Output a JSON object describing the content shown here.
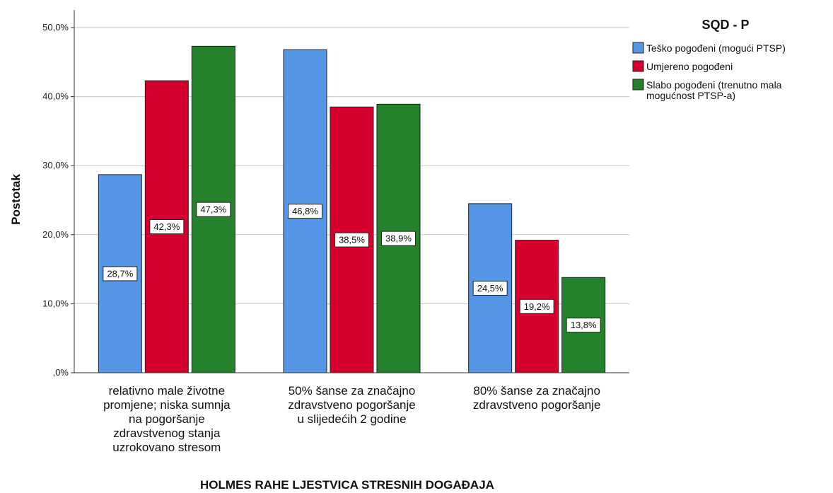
{
  "chart_data": {
    "type": "bar",
    "title": "",
    "xlabel": "HOLMES RAHE LJESTVICA STRESNIH DOGAĐAJA",
    "ylabel": "Postotak",
    "ylim": [
      0,
      50
    ],
    "yticks": [
      0,
      10,
      20,
      30,
      40,
      50
    ],
    "ytick_labels": [
      ",0%",
      "10,0%",
      "20,0%",
      "30,0%",
      "40,0%",
      "50,0%"
    ],
    "grid": true,
    "legend_position": "top-right",
    "legend_title": "SQD - P",
    "categories": [
      [
        "relativno male životne",
        "promjene; niska sumnja",
        "na pogoršanje",
        "zdravstvenog stanja",
        "uzrokovano stresom"
      ],
      [
        "50% šanse za značajno",
        "zdravstveno pogoršanje",
        "u slijedećih 2 godine"
      ],
      [
        "80% šanse za značajno",
        "zdravstveno pogoršanje"
      ]
    ],
    "series": [
      {
        "name": [
          "Teško pogođeni (mogući PTSP)"
        ],
        "color": "#5596e6",
        "values": [
          28.7,
          46.8,
          24.5
        ],
        "labels": [
          "28,7%",
          "46,8%",
          "24,5%"
        ]
      },
      {
        "name": [
          "Umjereno pogođeni"
        ],
        "color": "#d6002e",
        "values": [
          42.3,
          38.5,
          19.2
        ],
        "labels": [
          "42,3%",
          "38,5%",
          "19,2%"
        ]
      },
      {
        "name": [
          "Slabo pogođeni (trenutno mala",
          "mogućnost PTSP-a)"
        ],
        "color": "#24822d",
        "values": [
          47.3,
          38.9,
          13.8
        ],
        "labels": [
          "47,3%",
          "38,9%",
          "13,8%"
        ]
      }
    ]
  }
}
